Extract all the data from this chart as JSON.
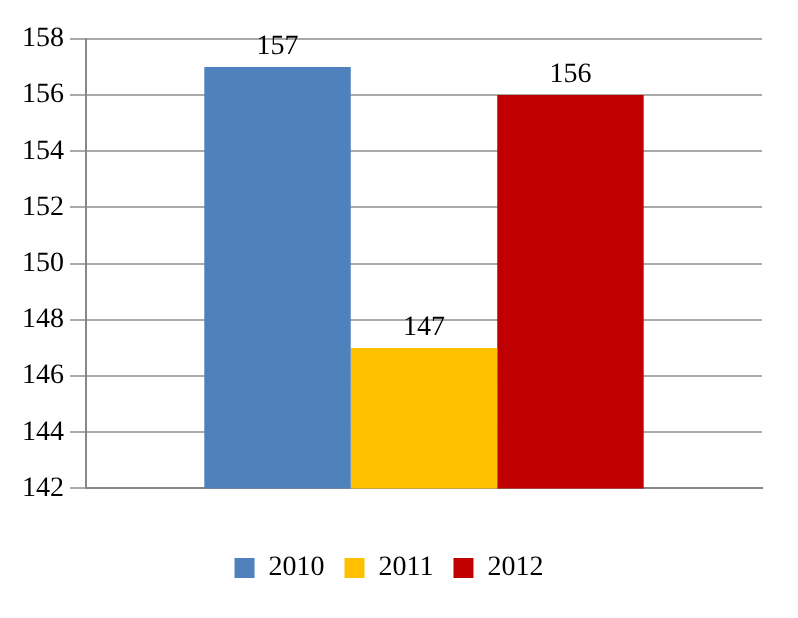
{
  "chart_data": {
    "type": "bar",
    "categories": [
      null
    ],
    "series": [
      {
        "name": "2010",
        "color": "#4f81bd",
        "values": [
          157
        ]
      },
      {
        "name": "2011",
        "color": "#ffc000",
        "values": [
          147
        ]
      },
      {
        "name": "2012",
        "color": "#c00000",
        "values": [
          156
        ]
      }
    ],
    "ylim": [
      142,
      158
    ],
    "yticks": [
      142,
      144,
      146,
      148,
      150,
      152,
      154,
      156,
      158
    ],
    "grid": "y",
    "legend": "bottom",
    "data_labels": true
  }
}
